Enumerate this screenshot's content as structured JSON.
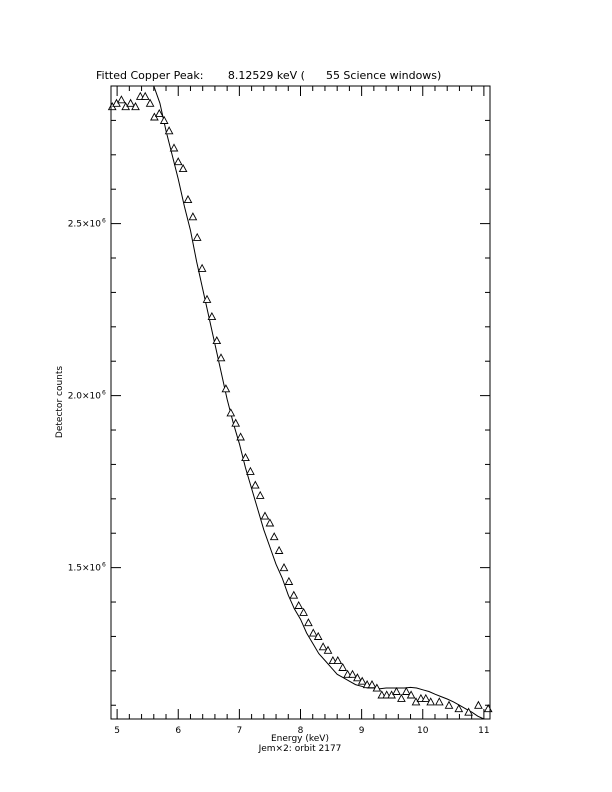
{
  "chart_data": {
    "type": "scatter",
    "title": "Fitted Copper Peak:       8.12529 keV (      55 Science windows)",
    "xlabel": "Energy (keV)",
    "ylabel": "Detector counts",
    "subtitle": "Jem×2: orbit 2177",
    "xlim": [
      4.9,
      11.1
    ],
    "ylim": [
      1060000,
      2900000
    ],
    "grid": false,
    "x_ticks": [
      {
        "value": 5,
        "label": "5"
      },
      {
        "value": 6,
        "label": "6"
      },
      {
        "value": 7,
        "label": "7"
      },
      {
        "value": 8,
        "label": "8"
      },
      {
        "value": 9,
        "label": "9"
      },
      {
        "value": 10,
        "label": "10"
      },
      {
        "value": 11,
        "label": "11"
      }
    ],
    "y_ticks": [
      {
        "value": 1500000,
        "mantissa": "1.5×10",
        "exponent": "6"
      },
      {
        "value": 2000000,
        "mantissa": "2.0×10",
        "exponent": "6"
      },
      {
        "value": 2500000,
        "mantissa": "2.5×10",
        "exponent": "6"
      }
    ],
    "series": [
      {
        "kind": "points",
        "marker": "triangle",
        "x": [
          4.92,
          4.99,
          5.07,
          5.14,
          5.22,
          5.3,
          5.38,
          5.46,
          5.54,
          5.61,
          5.69,
          5.77,
          5.85,
          5.93,
          6.0,
          6.08,
          6.16,
          6.24,
          6.31,
          6.39,
          6.47,
          6.55,
          6.63,
          6.7,
          6.78,
          6.86,
          6.94,
          7.02,
          7.1,
          7.18,
          7.26,
          7.34,
          7.42,
          7.5,
          7.57,
          7.65,
          7.73,
          7.81,
          7.89,
          7.97,
          8.05,
          8.13,
          8.21,
          8.29,
          8.37,
          8.45,
          8.53,
          8.61,
          8.69,
          8.77,
          8.85,
          8.93,
          9.01,
          9.09,
          9.17,
          9.25,
          9.33,
          9.41,
          9.49,
          9.57,
          9.65,
          9.73,
          9.81,
          9.89,
          9.97,
          10.05,
          10.13,
          10.27,
          10.43,
          10.59,
          10.75,
          10.91,
          11.07
        ],
        "y": [
          2840000,
          2850000,
          2860000,
          2840000,
          2850000,
          2840000,
          2870000,
          2870000,
          2850000,
          2810000,
          2820000,
          2800000,
          2770000,
          2720000,
          2680000,
          2660000,
          2570000,
          2520000,
          2460000,
          2370000,
          2280000,
          2230000,
          2160000,
          2110000,
          2020000,
          1950000,
          1920000,
          1880000,
          1820000,
          1780000,
          1740000,
          1710000,
          1650000,
          1630000,
          1590000,
          1550000,
          1500000,
          1460000,
          1420000,
          1390000,
          1370000,
          1340000,
          1310000,
          1300000,
          1270000,
          1260000,
          1230000,
          1230000,
          1210000,
          1190000,
          1190000,
          1180000,
          1170000,
          1160000,
          1160000,
          1150000,
          1130000,
          1130000,
          1130000,
          1140000,
          1120000,
          1140000,
          1130000,
          1110000,
          1120000,
          1120000,
          1110000,
          1110000,
          1100000,
          1090000,
          1080000,
          1100000,
          1090000
        ]
      },
      {
        "kind": "fit-line",
        "x": [
          5.6,
          5.7,
          5.8,
          5.9,
          6.0,
          6.1,
          6.2,
          6.3,
          6.4,
          6.5,
          6.6,
          6.7,
          6.8,
          6.9,
          7.0,
          7.1,
          7.2,
          7.3,
          7.4,
          7.5,
          7.6,
          7.7,
          7.8,
          7.9,
          8.0,
          8.1,
          8.2,
          8.3,
          8.4,
          8.5,
          8.6,
          8.7,
          8.8,
          8.9,
          9.0,
          9.1,
          9.2,
          9.3,
          9.4,
          9.5,
          9.6,
          9.7,
          9.8,
          9.9,
          10.0,
          10.1,
          10.2,
          10.3,
          10.4,
          10.5,
          10.6,
          10.7,
          10.8,
          10.9,
          11.0
        ],
        "y": [
          2930000,
          2850000,
          2770000,
          2700000,
          2630000,
          2550000,
          2480000,
          2390000,
          2310000,
          2230000,
          2150000,
          2070000,
          1990000,
          1920000,
          1860000,
          1790000,
          1730000,
          1670000,
          1610000,
          1560000,
          1510000,
          1470000,
          1420000,
          1380000,
          1350000,
          1310000,
          1280000,
          1250000,
          1230000,
          1210000,
          1190000,
          1180000,
          1170000,
          1160000,
          1155000,
          1150000,
          1150000,
          1148000,
          1150000,
          1150000,
          1150000,
          1150000,
          1152000,
          1150000,
          1145000,
          1140000,
          1132000,
          1125000,
          1118000,
          1110000,
          1100000,
          1090000,
          1080000,
          1068000,
          1058000
        ]
      }
    ]
  }
}
